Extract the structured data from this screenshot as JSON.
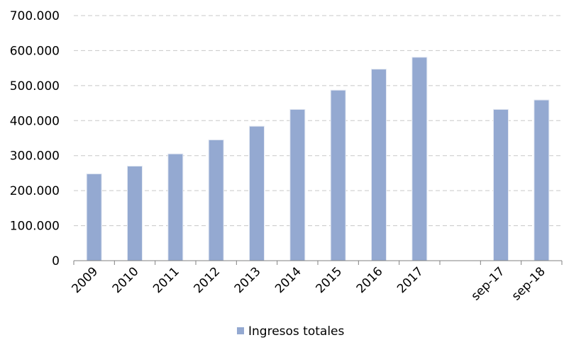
{
  "chart_data": {
    "type": "bar",
    "categories": [
      "2009",
      "2010",
      "2011",
      "2012",
      "2013",
      "2014",
      "2015",
      "2016",
      "2017",
      "",
      "sep-17",
      "sep-18"
    ],
    "series": [
      {
        "name": "Ingresos totales",
        "values": [
          247000,
          269000,
          304000,
          344000,
          383000,
          431000,
          486000,
          546000,
          580000,
          null,
          431000,
          458000
        ]
      }
    ],
    "ylim": [
      0,
      700000
    ],
    "yticks": [
      0,
      100000,
      200000,
      300000,
      400000,
      500000,
      600000,
      700000
    ],
    "ytick_labels": [
      "0",
      "100.000",
      "200.000",
      "300.000",
      "400.000",
      "500.000",
      "600.000",
      "700.000"
    ],
    "xlabel": "",
    "ylabel": "",
    "grid": true,
    "legend_position": "bottom",
    "colors": {
      "bar": "#94a9d1",
      "grid": "#c8c8c8",
      "axis": "#808080"
    }
  }
}
